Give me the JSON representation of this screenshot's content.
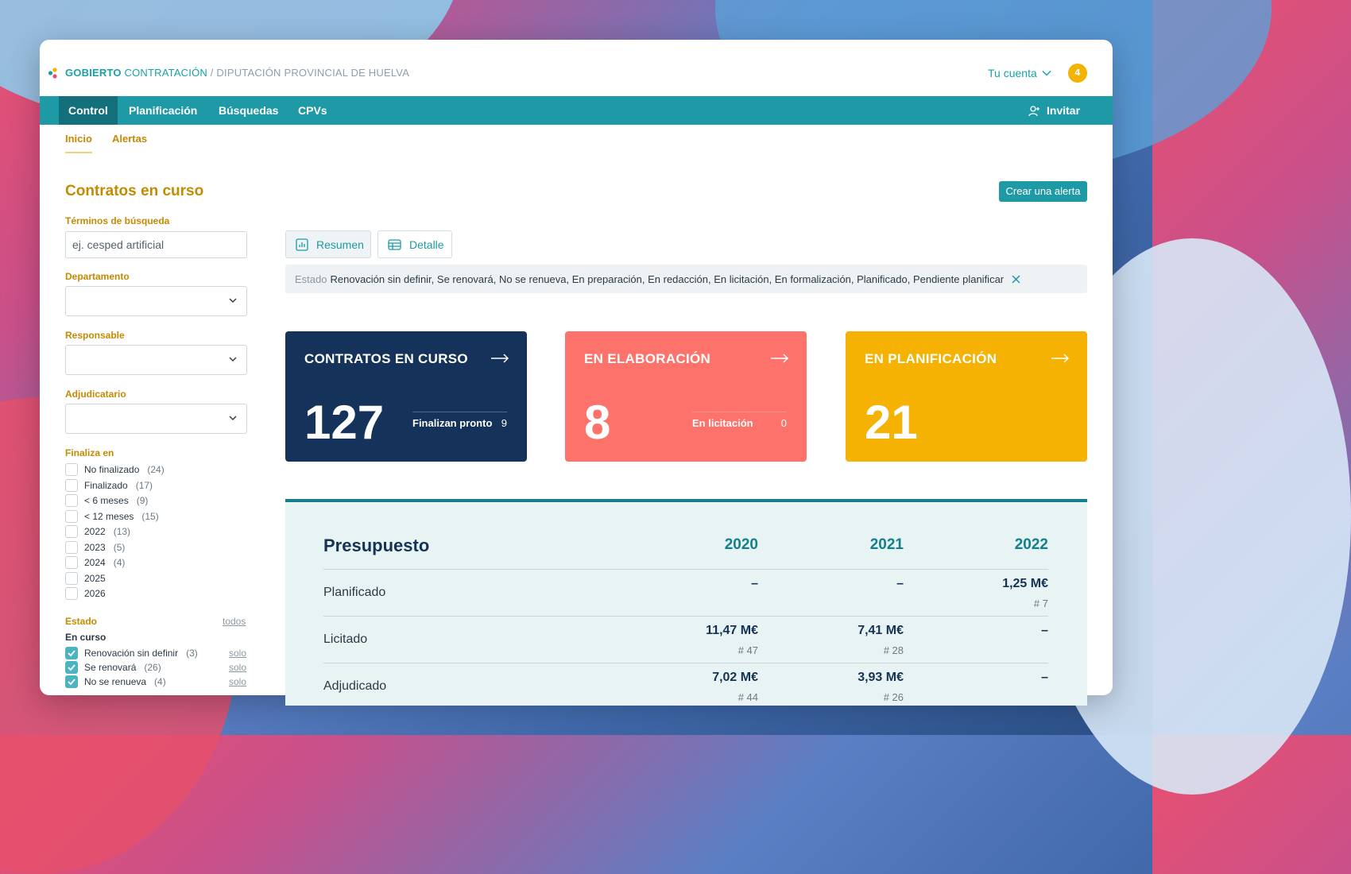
{
  "header": {
    "brand_bold": "GOBIERTO",
    "brand_app": " CONTRATACIÓN",
    "brand_org": " / DIPUTACIÓN PROVINCIAL DE HUELVA",
    "account_label": "Tu cuenta",
    "notifications_count": "4"
  },
  "nav": {
    "items": [
      {
        "label": "Control",
        "active": true
      },
      {
        "label": "Planificación",
        "active": false
      },
      {
        "label": "Búsquedas",
        "active": false
      },
      {
        "label": "CPVs",
        "active": false
      }
    ],
    "invite_label": "Invitar"
  },
  "subtabs": [
    {
      "label": "Inicio",
      "active": true
    },
    {
      "label": "Alertas",
      "active": false
    }
  ],
  "sidebar": {
    "title": "Contratos en curso",
    "search": {
      "label": "Términos de búsqueda",
      "placeholder": "ej. cesped artificial",
      "value": ""
    },
    "department_label": "Departamento",
    "responsible_label": "Responsable",
    "awardee_label": "Adjudicatario",
    "ends_in": {
      "label": "Finaliza en",
      "options": [
        {
          "label": "No finalizado",
          "count": "(24)",
          "checked": false
        },
        {
          "label": "Finalizado",
          "count": "(17)",
          "checked": false
        },
        {
          "label": "< 6 meses",
          "count": "(9)",
          "checked": false
        },
        {
          "label": "< 12 meses",
          "count": "(15)",
          "checked": false
        },
        {
          "label": "2022",
          "count": "(13)",
          "checked": false
        },
        {
          "label": "2023",
          "count": "(5)",
          "checked": false
        },
        {
          "label": "2024",
          "count": "(4)",
          "checked": false
        },
        {
          "label": "2025",
          "count": "",
          "checked": false
        },
        {
          "label": "2026",
          "count": "",
          "checked": false
        }
      ]
    },
    "state": {
      "label": "Estado",
      "all_label": "todos",
      "group_label": "En curso",
      "only_label": "solo",
      "options": [
        {
          "label": "Renovación sin definir",
          "count": "(3)",
          "checked": true
        },
        {
          "label": "Se renovará",
          "count": "(26)",
          "checked": true
        },
        {
          "label": "No se renueva",
          "count": "(4)",
          "checked": true
        }
      ]
    }
  },
  "main": {
    "create_alert_label": "Crear una alerta",
    "view_buttons": [
      {
        "label": "Resumen",
        "icon": "chart-icon",
        "active": true
      },
      {
        "label": "Detalle",
        "icon": "table-icon",
        "active": false
      }
    ],
    "filter": {
      "key": "Estado",
      "value": "Renovación sin definir, Se renovará, No se renueva, En preparación, En redacción, En licitación, En formalización, Planificado, Pendiente planificar"
    },
    "cards": [
      {
        "title": "CONTRATOS EN CURSO",
        "value": "127",
        "sub_label": "Finalizan pronto",
        "sub_value": "9",
        "color": "#15325a"
      },
      {
        "title": "EN ELABORACIÓN",
        "value": "8",
        "sub_label": "En licitación",
        "sub_value": "0",
        "color": "#fd736b"
      },
      {
        "title": "EN PLANIFICACIÓN",
        "value": "21",
        "sub_label": "",
        "sub_value": "",
        "color": "#f5b203"
      }
    ],
    "budget": {
      "title": "Presupuesto",
      "years": [
        "2020",
        "2021",
        "2022"
      ],
      "rows": [
        {
          "label": "Planificado",
          "values": [
            "–",
            "–",
            "1,25 M€"
          ],
          "counts": [
            "",
            "",
            "# 7"
          ]
        },
        {
          "label": "Licitado",
          "values": [
            "11,47 M€",
            "7,41 M€",
            "–"
          ],
          "counts": [
            "# 47",
            "# 28",
            ""
          ]
        },
        {
          "label": "Adjudicado",
          "values": [
            "7,02 M€",
            "3,93 M€",
            "–"
          ],
          "counts": [
            "# 44",
            "# 26",
            ""
          ]
        }
      ]
    }
  },
  "colors": {
    "teal": "#1d9aa5",
    "teal_dark": "#13707a",
    "gold": "#c48a02",
    "navy": "#15325a",
    "coral": "#fd736b",
    "yellow": "#f5b203"
  }
}
